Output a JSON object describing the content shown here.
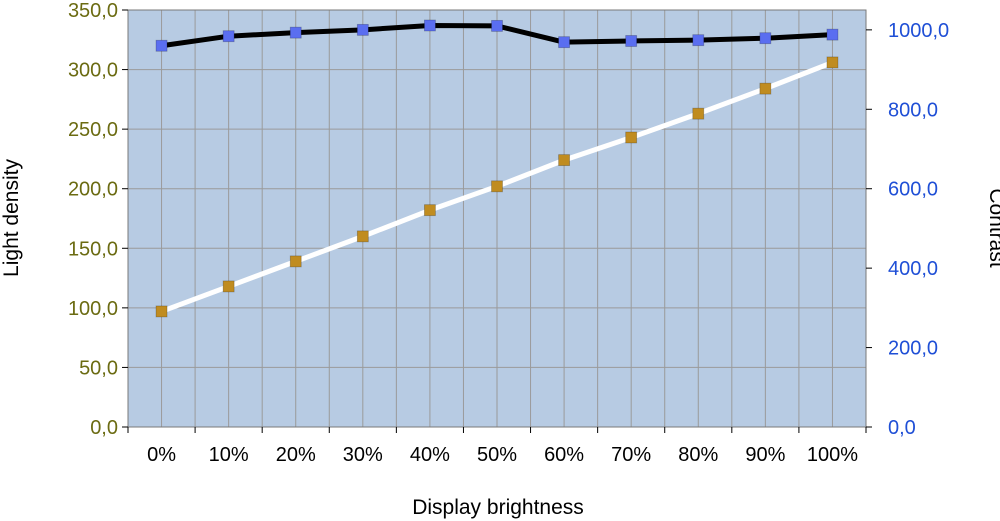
{
  "chart_data": {
    "type": "line",
    "xlabel": "Display brightness",
    "ylabel_left": "Light density",
    "ylabel_right": "Contrast",
    "categories": [
      "0%",
      "10%",
      "20%",
      "30%",
      "40%",
      "50%",
      "60%",
      "70%",
      "80%",
      "90%",
      "100%"
    ],
    "ylim_left": [
      0,
      350
    ],
    "ylim_right": [
      0,
      1050
    ],
    "yticks_left": [
      "0,0",
      "50,0",
      "100,0",
      "150,0",
      "200,0",
      "250,0",
      "300,0",
      "350,0"
    ],
    "yticks_right": [
      "0,0",
      "200,0",
      "400,0",
      "600,0",
      "800,0",
      "1000,0"
    ],
    "grid": true,
    "series": [
      {
        "axis": "left",
        "values": [
          97,
          118,
          139,
          160,
          182,
          202,
          224,
          243,
          263,
          284,
          306
        ],
        "line_color": "#ffffff",
        "marker_color": "#c08c20"
      },
      {
        "axis": "right",
        "values": [
          960,
          984,
          993,
          1000,
          1011,
          1010,
          969,
          972,
          974,
          979,
          988
        ],
        "line_color": "#000000",
        "marker_color": "#5a6ef0"
      }
    ],
    "colors": {
      "plot_bg": "#b7cbe3",
      "grid": "#9a9a9a",
      "left_tick": "#6b6b12",
      "right_tick": "#1f4fd6"
    }
  }
}
